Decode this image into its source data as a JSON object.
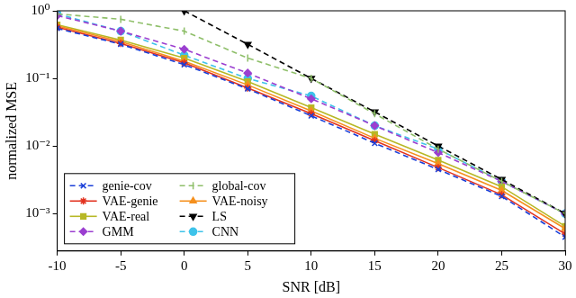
{
  "chart_data": {
    "type": "line",
    "x_label": "SNR [dB]",
    "y_label": "normalized MSE",
    "x": [
      -10,
      -5,
      0,
      5,
      10,
      15,
      20,
      25,
      30
    ],
    "xlim": [
      -10,
      30
    ],
    "xticks": [
      -10,
      -5,
      0,
      5,
      10,
      15,
      20,
      25,
      30
    ],
    "ylim": [
      0.00028,
      1
    ],
    "yticks": [
      {
        "value": 0.001,
        "label": "10⁻³"
      },
      {
        "value": 0.01,
        "label": "10⁻²"
      },
      {
        "value": 0.1,
        "label": "10⁻¹"
      },
      {
        "value": 1,
        "label": "10⁰"
      }
    ],
    "log": "y",
    "grid": false,
    "legend": "lower left",
    "series": [
      {
        "name": "genie-cov",
        "color": "#1a3fd8",
        "marker": "x",
        "line_style": "dashed",
        "values": [
          0.55,
          0.32,
          0.16,
          0.07,
          0.028,
          0.011,
          0.0045,
          0.0018,
          0.00045
        ]
      },
      {
        "name": "global-cov",
        "color": "#8fbf6a",
        "marker": "vline",
        "line_style": "dashed",
        "values": [
          0.9,
          0.75,
          0.5,
          0.2,
          0.1,
          0.03,
          0.009,
          0.003,
          0.001
        ]
      },
      {
        "name": "VAE-genie",
        "color": "#e2321f",
        "marker": "star",
        "line_style": "solid",
        "values": [
          0.57,
          0.33,
          0.17,
          0.072,
          0.03,
          0.012,
          0.0048,
          0.0019,
          0.0005
        ]
      },
      {
        "name": "VAE-noisy",
        "color": "#f5901e",
        "marker": "triangle",
        "line_style": "solid",
        "values": [
          0.6,
          0.35,
          0.18,
          0.08,
          0.033,
          0.013,
          0.0055,
          0.0022,
          0.0006
        ]
      },
      {
        "name": "VAE-real",
        "color": "#b7b826",
        "marker": "pentagon",
        "line_style": "solid",
        "values": [
          0.62,
          0.37,
          0.2,
          0.09,
          0.037,
          0.015,
          0.0062,
          0.0025,
          0.00065
        ]
      },
      {
        "name": "LS",
        "color": "#000000",
        "marker": "tri_down",
        "line_style": "dashed",
        "values": [
          null,
          null,
          1.0,
          0.32,
          0.1,
          0.032,
          0.01,
          0.0032,
          0.001
        ]
      },
      {
        "name": "GMM",
        "color": "#9b3fd0",
        "marker": "diamond",
        "line_style": "dashed",
        "values": [
          0.85,
          0.5,
          0.27,
          0.12,
          0.05,
          0.02,
          0.008,
          0.003,
          0.001
        ]
      },
      {
        "name": "CNN",
        "color": "#3ec3ea",
        "marker": "circle",
        "line_style": "dashed",
        "values": [
          0.9,
          0.5,
          0.22,
          0.1,
          0.055,
          0.02,
          0.009,
          0.003,
          0.001
        ]
      }
    ]
  }
}
